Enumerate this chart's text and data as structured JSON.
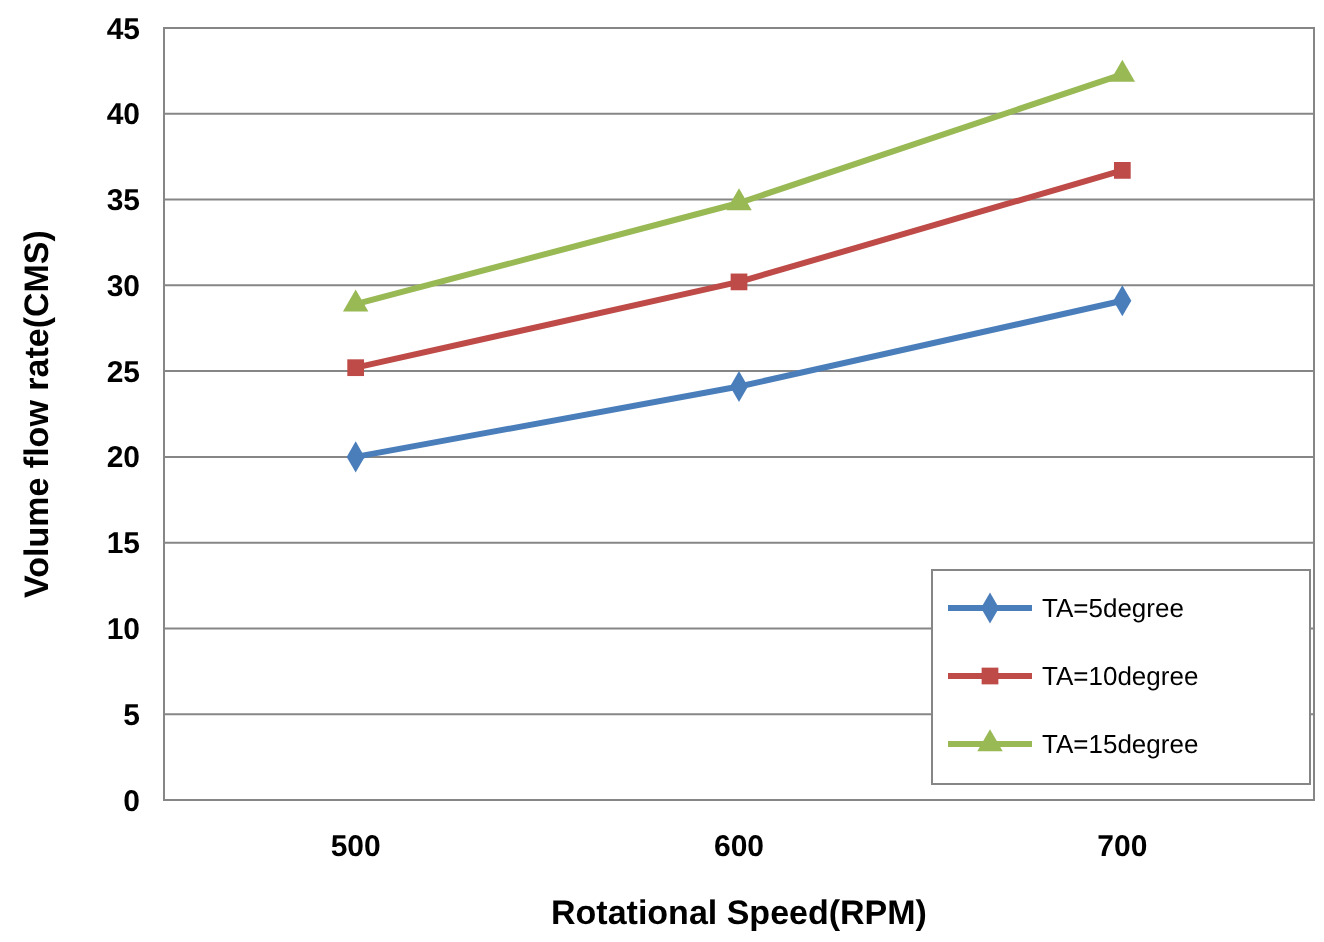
{
  "chart_data": {
    "type": "line",
    "xlabel": "Rotational Speed(RPM)",
    "ylabel": "Volume flow rate(CMS)",
    "categories": [
      "500",
      "600",
      "700"
    ],
    "series": [
      {
        "name": "TA=5degree",
        "color": "#4a7ebb",
        "marker": "diamond",
        "values": [
          20.0,
          24.1,
          29.1
        ]
      },
      {
        "name": "TA=10degree",
        "color": "#be4b48",
        "marker": "square",
        "values": [
          25.2,
          30.2,
          36.7
        ]
      },
      {
        "name": "TA=15degree",
        "color": "#98b954",
        "marker": "triangle",
        "values": [
          28.9,
          34.8,
          42.3
        ]
      }
    ],
    "ylim": [
      0,
      45
    ],
    "yticks": [
      0,
      5,
      10,
      15,
      20,
      25,
      30,
      35,
      40,
      45
    ],
    "grid": "y",
    "legend": "bottom right"
  }
}
